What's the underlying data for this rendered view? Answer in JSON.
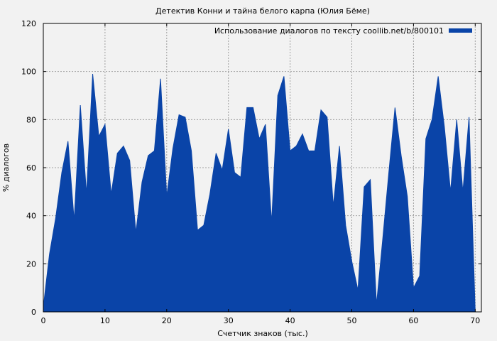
{
  "chart_data": {
    "type": "area",
    "title": "Детектив Конни и тайна белого карпа (Юлия Бёме)",
    "xlabel": "Счетчик знаков (тыс.)",
    "ylabel": "% диалогов",
    "xlim": [
      0,
      71
    ],
    "ylim": [
      0,
      120
    ],
    "xticks": [
      0,
      10,
      20,
      30,
      40,
      50,
      60,
      70
    ],
    "yticks": [
      0,
      20,
      40,
      60,
      80,
      100,
      120
    ],
    "grid": true,
    "legend_position": "top-right",
    "color": "#0a44a8",
    "series": [
      {
        "name": "Использование диалогов по тексту coollib.net/b/800101",
        "x": [
          0,
          1,
          2,
          3,
          4,
          5,
          6,
          7,
          8,
          9,
          10,
          11,
          12,
          13,
          14,
          15,
          16,
          17,
          18,
          19,
          20,
          21,
          22,
          23,
          24,
          25,
          26,
          27,
          28,
          29,
          30,
          31,
          32,
          33,
          34,
          35,
          36,
          37,
          38,
          39,
          40,
          41,
          42,
          43,
          44,
          45,
          46,
          47,
          48,
          49,
          50,
          51,
          52,
          53,
          54,
          55,
          56,
          57,
          58,
          59,
          60,
          61,
          62,
          63,
          64,
          65,
          66,
          67,
          68,
          69,
          70
        ],
        "y": [
          2,
          24,
          39,
          58,
          71,
          38,
          86,
          49,
          99,
          73,
          78,
          49,
          66,
          69,
          63,
          33,
          54,
          65,
          67,
          97,
          48,
          68,
          82,
          81,
          67,
          34,
          36,
          49,
          66,
          59,
          76,
          58,
          56,
          85,
          85,
          72,
          78,
          37,
          90,
          98,
          67,
          69,
          74,
          67,
          67,
          84,
          81,
          44,
          69,
          36,
          21,
          9,
          52,
          55,
          3,
          30,
          58,
          85,
          65,
          48,
          10,
          15,
          72,
          80,
          98,
          77,
          50,
          80,
          50,
          81,
          0
        ]
      }
    ]
  }
}
